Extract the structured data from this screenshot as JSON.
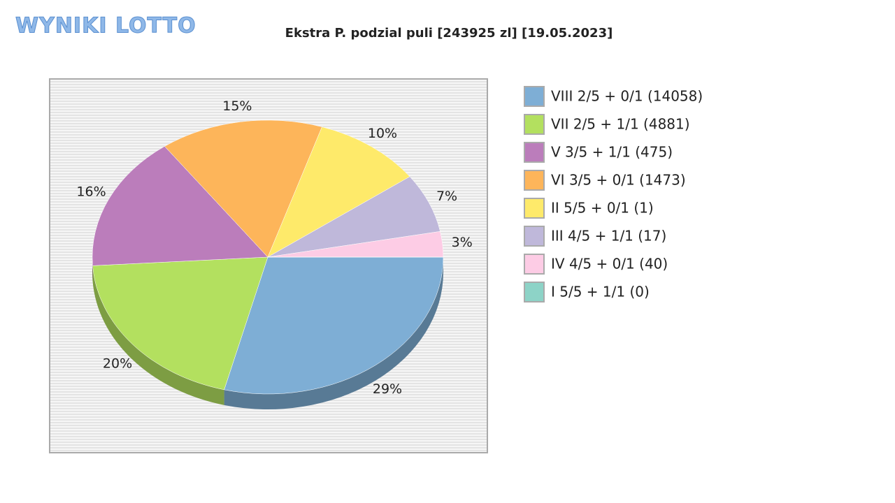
{
  "logo": "WYNIKI LOTTO",
  "chart_data": {
    "type": "pie",
    "title": "Ekstra P. podzial puli [243925 zl] [19.05.2023]",
    "categories": [
      "VIII 2/5 + 0/1 (14058)",
      "VII 2/5 + 1/1 (4881)",
      "V 3/5 + 1/1 (475)",
      "VI 3/5 + 0/1 (1473)",
      "II 5/5 + 0/1 (1)",
      "III 4/5 + 1/1 (17)",
      "IV 4/5 + 0/1 (40)",
      "I 5/5 + 1/1 (0)"
    ],
    "values": [
      29,
      20,
      16,
      15,
      10,
      7,
      3,
      0
    ],
    "value_labels": [
      "29%",
      "20%",
      "16%",
      "15%",
      "10%",
      "7%",
      "3%",
      null
    ],
    "colors": [
      "#7eaed5",
      "#b3e05f",
      "#bb7dbb",
      "#fdb55a",
      "#feea6a",
      "#bfb8da",
      "#fdcce5",
      "#8dd3c7"
    ],
    "legend": "right"
  }
}
